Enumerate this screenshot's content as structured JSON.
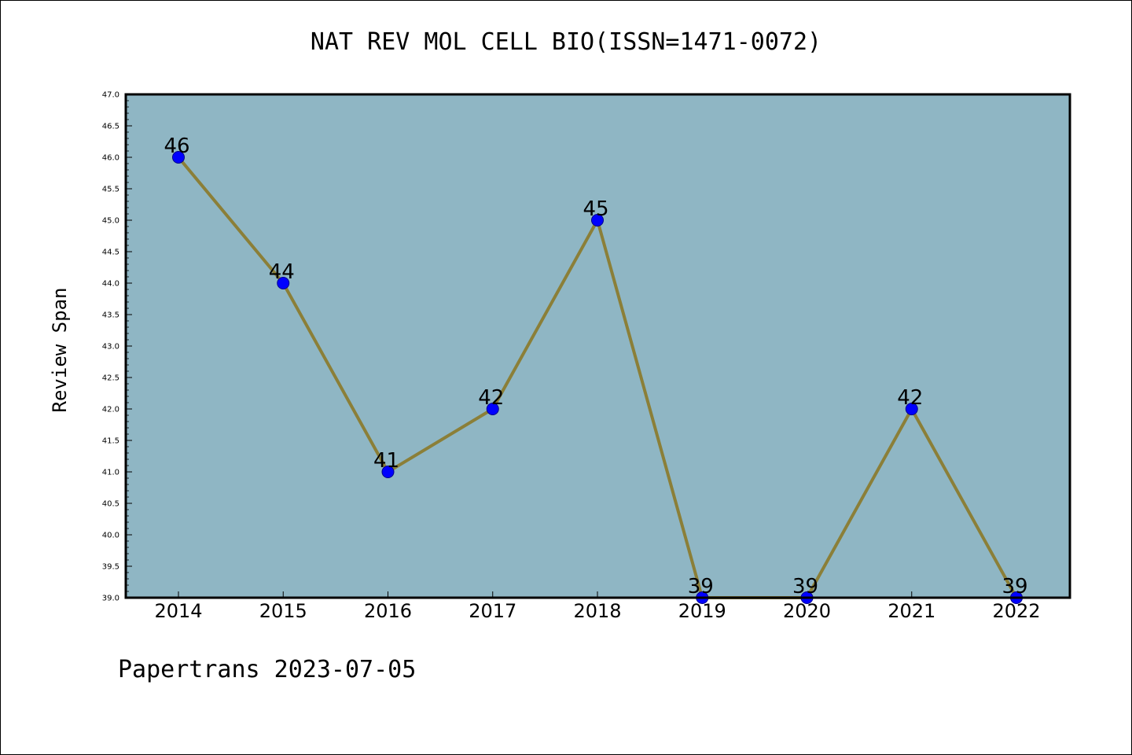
{
  "title": "NAT REV MOL CELL BIO(ISSN=1471-0072)",
  "footer": "Papertrans 2023-07-05",
  "colors": {
    "plot_background": "#8fb6c4",
    "line": "#8b7f38",
    "marker": "#0000ff"
  },
  "chart_data": {
    "type": "line",
    "title": "NAT REV MOL CELL BIO(ISSN=1471-0072)",
    "xlabel": "",
    "ylabel": "Review Span",
    "categories": [
      "2014",
      "2015",
      "2016",
      "2017",
      "2018",
      "2019",
      "2020",
      "2021",
      "2022"
    ],
    "values": [
      46,
      44,
      41,
      42,
      45,
      39,
      39,
      42,
      39
    ],
    "data_labels": [
      "46",
      "44",
      "41",
      "42",
      "45",
      "39",
      "39",
      "42",
      "39"
    ],
    "ylim": [
      39.0,
      47.0
    ],
    "y_ticks": [
      "39.0",
      "39.5",
      "40.0",
      "40.5",
      "41.0",
      "41.5",
      "42.0",
      "42.5",
      "43.0",
      "43.5",
      "44.0",
      "44.5",
      "45.0",
      "45.5",
      "46.0",
      "46.5",
      "47.0"
    ],
    "y_tick_values": [
      39.0,
      39.5,
      40.0,
      40.5,
      41.0,
      41.5,
      42.0,
      42.5,
      43.0,
      43.5,
      44.0,
      44.5,
      45.0,
      45.5,
      46.0,
      46.5,
      47.0
    ],
    "grid": false,
    "legend": "none"
  }
}
